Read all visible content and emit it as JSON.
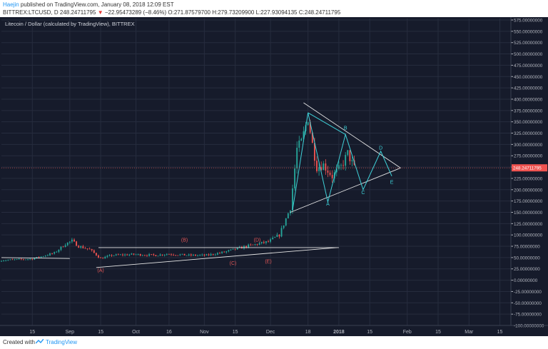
{
  "header": {
    "author": "Haejin",
    "published": "published on TradingView.com, January 08, 2018 12:09 EST",
    "symbol": "BITTREX:LTCUSD, D",
    "last": "248.24711795",
    "change": "−22.95473289 (−8.46%)",
    "open": "O:271.87579700",
    "high": "H:279.73209900",
    "low": "L:227.93094135",
    "close": "C:248.24711795"
  },
  "footer": {
    "created": "Created with",
    "brand": "TradingView"
  },
  "colors": {
    "background": "#161b2b",
    "grid": "#262c3e",
    "up": "#26a69a",
    "down": "#ef5350",
    "trendline": "#e6e6e6",
    "wave": "#3fd1d8",
    "wave_label_red": "#e05555",
    "price_tag": "#ef5350"
  },
  "chart_data": {
    "type": "candlestick",
    "title": "Litecoin / Dollar (calculated by TradingView), BITTREX",
    "x_ticks": [
      "15",
      "Sep",
      "15",
      "Oct",
      "16",
      "Nov",
      "15",
      "Dec",
      "18",
      "2018",
      "15",
      "Feb",
      "15",
      "Mar",
      "15"
    ],
    "y_ticks": [
      "575.00000000",
      "550.00000000",
      "525.00000000",
      "500.00000000",
      "475.00000000",
      "450.00000000",
      "425.00000000",
      "400.00000000",
      "375.00000000",
      "350.00000000",
      "325.00000000",
      "300.00000000",
      "275.00000000",
      "250.00000000",
      "225.00000000",
      "200.00000000",
      "175.00000000",
      "150.00000000",
      "125.00000000",
      "100.00000000",
      "75.00000000",
      "50.00000000",
      "25.00000000",
      "0.00000000",
      "-25.00000000",
      "-50.00000000",
      "-75.00000000",
      "-100.00000000"
    ],
    "ylim": [
      -100,
      575
    ],
    "price_tag": "248.24711795",
    "grid": true,
    "close_series": [
      {
        "date": "2017-08-01",
        "close": 44
      },
      {
        "date": "2017-08-15",
        "close": 47
      },
      {
        "date": "2017-08-25",
        "close": 60
      },
      {
        "date": "2017-08-30",
        "close": 80
      },
      {
        "date": "2017-09-02",
        "close": 87
      },
      {
        "date": "2017-09-05",
        "close": 75
      },
      {
        "date": "2017-09-10",
        "close": 68
      },
      {
        "date": "2017-09-15",
        "close": 48
      },
      {
        "date": "2017-09-20",
        "close": 55
      },
      {
        "date": "2017-09-30",
        "close": 57
      },
      {
        "date": "2017-10-10",
        "close": 55
      },
      {
        "date": "2017-10-15",
        "close": 58
      },
      {
        "date": "2017-10-25",
        "close": 55
      },
      {
        "date": "2017-11-02",
        "close": 55
      },
      {
        "date": "2017-11-10",
        "close": 62
      },
      {
        "date": "2017-11-20",
        "close": 75
      },
      {
        "date": "2017-11-30",
        "close": 85
      },
      {
        "date": "2017-12-05",
        "close": 100
      },
      {
        "date": "2017-12-10",
        "close": 160
      },
      {
        "date": "2017-12-13",
        "close": 290
      },
      {
        "date": "2017-12-15",
        "close": 305
      },
      {
        "date": "2017-12-18",
        "close": 360
      },
      {
        "date": "2017-12-20",
        "close": 300
      },
      {
        "date": "2017-12-22",
        "close": 250
      },
      {
        "date": "2017-12-25",
        "close": 255
      },
      {
        "date": "2017-12-29",
        "close": 230
      },
      {
        "date": "2018-01-02",
        "close": 250
      },
      {
        "date": "2018-01-05",
        "close": 280
      },
      {
        "date": "2018-01-08",
        "close": 248
      }
    ],
    "wave_labels_red": [
      {
        "label": "(A)",
        "date": "2017-09-15",
        "value": 18
      },
      {
        "label": "(B)",
        "date": "2017-10-23",
        "value": 85
      },
      {
        "label": "(C)",
        "date": "2017-11-14",
        "value": 34
      },
      {
        "label": "(D)",
        "date": "2017-11-25",
        "value": 85
      },
      {
        "label": "(E)",
        "date": "2017-11-30",
        "value": 38
      }
    ],
    "wave_labels_cyan": [
      {
        "label": "A",
        "date": "2017-12-27",
        "value": 165
      },
      {
        "label": "B",
        "date": "2018-01-04",
        "value": 333
      },
      {
        "label": "C",
        "date": "2018-01-12",
        "value": 190
      },
      {
        "label": "D",
        "date": "2018-01-20",
        "value": 289
      },
      {
        "label": "E",
        "date": "2018-01-25",
        "value": 213
      }
    ]
  }
}
